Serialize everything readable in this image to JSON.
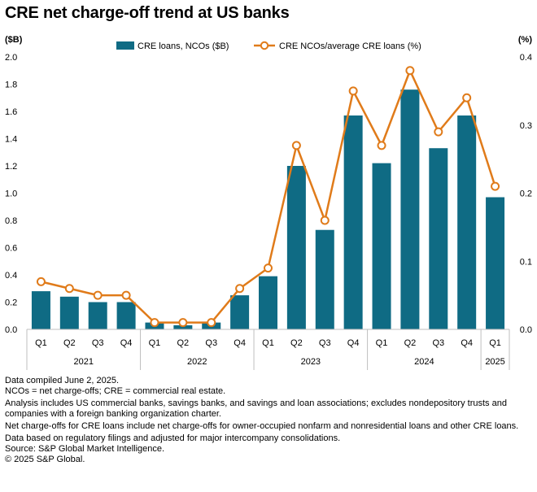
{
  "title": "CRE net charge-off trend at US banks",
  "chart_data": {
    "type": "bar+line",
    "left_axis_unit": "($B)",
    "right_axis_unit": "(%)",
    "ylim_left": [
      0,
      2.0
    ],
    "ylim_right": [
      0,
      0.4
    ],
    "left_ticks": [
      "0.0",
      "0.2",
      "0.4",
      "0.6",
      "0.8",
      "1.0",
      "1.2",
      "1.4",
      "1.6",
      "1.8",
      "2.0"
    ],
    "right_ticks": [
      "0.0",
      "0.1",
      "0.2",
      "0.3",
      "0.4"
    ],
    "categories": [
      "Q1",
      "Q2",
      "Q3",
      "Q4",
      "Q1",
      "Q2",
      "Q3",
      "Q4",
      "Q1",
      "Q2",
      "Q3",
      "Q4",
      "Q1",
      "Q2",
      "Q3",
      "Q4",
      "Q1"
    ],
    "years": [
      {
        "label": "2021",
        "count": 4
      },
      {
        "label": "2022",
        "count": 4
      },
      {
        "label": "2023",
        "count": 4
      },
      {
        "label": "2024",
        "count": 4
      },
      {
        "label": "2025",
        "count": 1
      }
    ],
    "series": [
      {
        "name": "CRE loans, NCOs ($B)",
        "type": "bar",
        "axis": "left",
        "color": "#0f6b84",
        "values": [
          0.28,
          0.24,
          0.2,
          0.2,
          0.05,
          0.03,
          0.05,
          0.25,
          0.39,
          1.2,
          0.73,
          1.57,
          1.22,
          1.76,
          1.33,
          1.57,
          0.97
        ]
      },
      {
        "name": "CRE NCOs/average CRE loans (%)",
        "type": "line",
        "axis": "right",
        "color": "#e07b1a",
        "values": [
          0.07,
          0.06,
          0.05,
          0.05,
          0.01,
          0.01,
          0.01,
          0.06,
          0.09,
          0.27,
          0.16,
          0.35,
          0.27,
          0.38,
          0.29,
          0.34,
          0.21
        ]
      }
    ]
  },
  "notes": [
    "Data compiled June 2, 2025.",
    "NCOs = net charge-offs; CRE = commercial real estate.",
    "Analysis includes US commercial banks, savings banks, and savings and loan associations; excludes nondepository trusts and companies with a foreign banking organization charter.",
    "Net charge-offs for CRE loans include net charge-offs for owner-occupied nonfarm and nonresidential loans and other CRE loans.",
    "Data based on regulatory filings and adjusted for major intercompany consolidations.",
    "Source: S&P Global Market Intelligence.",
    "© 2025 S&P Global."
  ]
}
